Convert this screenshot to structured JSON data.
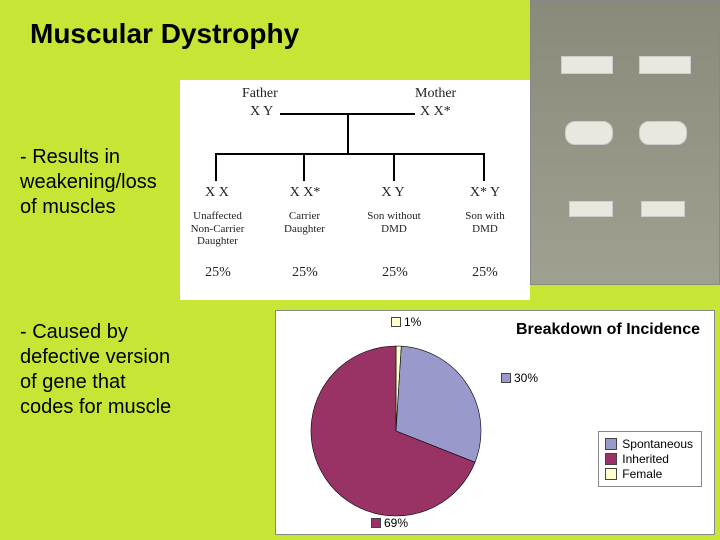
{
  "title": "Muscular Dystrophy",
  "bullets": {
    "b1": "- Results in weakening/loss of muscles",
    "b2": "- Caused by defective version of gene that codes for muscle"
  },
  "pedigree": {
    "background_color": "#ffffff",
    "line_color": "#000000",
    "parents": {
      "father": {
        "label": "Father",
        "genotype": "X Y"
      },
      "mother": {
        "label": "Mother",
        "genotype": "X X*"
      }
    },
    "children": [
      {
        "genotype": "X X",
        "label": "Unaffected\nNon-Carrier\nDaughter",
        "percent": "25%"
      },
      {
        "genotype": "X X*",
        "label": "Carrier\nDaughter",
        "percent": "25%"
      },
      {
        "genotype": "X Y",
        "label": "Son without\nDMD",
        "percent": "25%"
      },
      {
        "genotype": "X* Y",
        "label": "Son with\nDMD",
        "percent": "25%"
      }
    ],
    "font_family": "Georgia",
    "label_fontsize": 14,
    "child_label_fontsize": 11
  },
  "photo": {
    "semantic": "legs-with-braces",
    "brace_color": "#e8e8e0",
    "background_gradient": [
      "#8a8a7a",
      "#a0a090"
    ]
  },
  "pie": {
    "type": "pie",
    "title": "Breakdown of Incidence",
    "title_fontsize": 16,
    "background_color": "#ffffff",
    "border_color": "#888888",
    "slices": [
      {
        "name": "Spontaneous",
        "value": 30,
        "color": "#9999cc",
        "label": "30%"
      },
      {
        "name": "Inherited",
        "value": 69,
        "color": "#993366",
        "label": "69%"
      },
      {
        "name": "Female",
        "value": 1,
        "color": "#ffffcc",
        "label": "1%"
      }
    ],
    "legend": {
      "position": "right",
      "border_color": "#888888",
      "fontsize": 12
    },
    "radius": 85,
    "label_fontsize": 12,
    "start_angle_deg": -90
  }
}
